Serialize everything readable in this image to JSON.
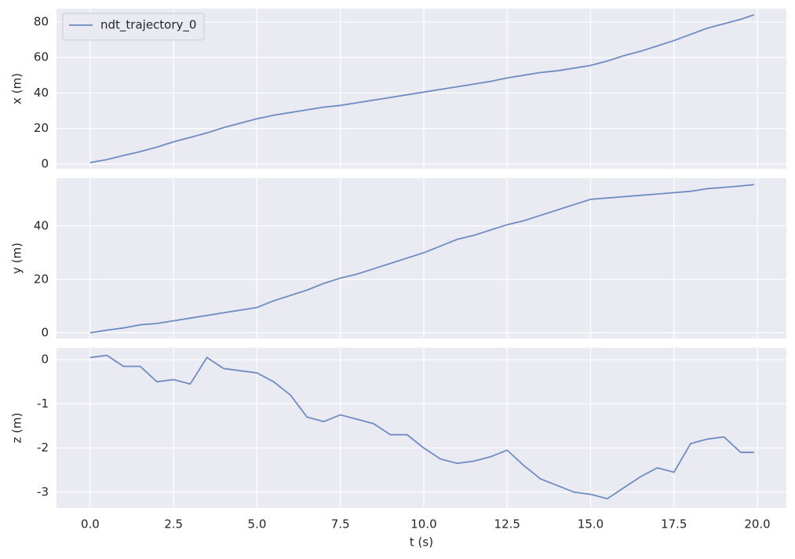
{
  "chart_data": [
    {
      "type": "line",
      "ylabel": "x (m)",
      "legend": "upper left",
      "x": [
        0,
        0.5,
        1,
        1.5,
        2,
        2.5,
        3,
        3.5,
        4,
        4.5,
        5,
        5.5,
        6,
        6.5,
        7,
        7.5,
        8,
        8.5,
        9,
        9.5,
        10,
        10.5,
        11,
        11.5,
        12,
        12.5,
        13,
        13.5,
        14,
        14.5,
        15,
        15.5,
        16,
        16.5,
        17,
        17.5,
        18,
        18.5,
        19,
        19.5,
        19.9
      ],
      "series": [
        {
          "name": "ndt_trajectory_0",
          "color": "#6f8cc2",
          "values": [
            0.8,
            2.5,
            4.8,
            7,
            9.5,
            12.5,
            15,
            17.5,
            20.5,
            23,
            25.5,
            27.5,
            29,
            30.5,
            32,
            33,
            34.5,
            36,
            37.5,
            39,
            40.5,
            42,
            43.5,
            45,
            46.5,
            48.5,
            50,
            51.5,
            52.5,
            54,
            55.5,
            58,
            61,
            63.5,
            66.5,
            69.5,
            73,
            76.5,
            79,
            81.5,
            84
          ]
        }
      ],
      "xlim": [
        -1.01,
        20.87
      ],
      "ylim": [
        -2.7,
        87.5
      ],
      "yticks": [
        0,
        20,
        40,
        60,
        80
      ],
      "grid": true
    },
    {
      "type": "line",
      "ylabel": "y (m)",
      "x": [
        0,
        0.5,
        1,
        1.5,
        2,
        2.5,
        3,
        3.5,
        4,
        4.5,
        5,
        5.5,
        6,
        6.5,
        7,
        7.5,
        8,
        8.5,
        9,
        9.5,
        10,
        10.5,
        11,
        11.5,
        12,
        12.5,
        13,
        13.5,
        14,
        14.5,
        15,
        15.5,
        16,
        16.5,
        17,
        17.5,
        18,
        18.5,
        19,
        19.5,
        19.9
      ],
      "series": [
        {
          "color": "#6f8cc2",
          "values": [
            0,
            1,
            1.8,
            3,
            3.5,
            4.5,
            5.5,
            6.5,
            7.5,
            8.5,
            9.5,
            12,
            14,
            16,
            18.5,
            20.5,
            22,
            24,
            26,
            28,
            30,
            32.5,
            35,
            36.5,
            38.5,
            40.5,
            42,
            44,
            46,
            48,
            50,
            50.5,
            51,
            51.5,
            52,
            52.5,
            53,
            54,
            54.5,
            55,
            55.5
          ]
        }
      ],
      "xlim": [
        -1.01,
        20.87
      ],
      "ylim": [
        -2.1,
        57.9
      ],
      "yticks": [
        0,
        20,
        40
      ],
      "grid": true
    },
    {
      "type": "line",
      "ylabel": "z (m)",
      "xlabel": "t (s)",
      "x": [
        0,
        0.5,
        1,
        1.5,
        2,
        2.5,
        3,
        3.5,
        4,
        4.5,
        5,
        5.5,
        6,
        6.5,
        7,
        7.5,
        8,
        8.5,
        9,
        9.5,
        10,
        10.5,
        11,
        11.5,
        12,
        12.5,
        13,
        13.5,
        14,
        14.5,
        15,
        15.5,
        16,
        16.5,
        17,
        17.5,
        18,
        18.5,
        19,
        19.5,
        19.9
      ],
      "series": [
        {
          "color": "#6f8cc2",
          "values": [
            0.05,
            0.1,
            -0.15,
            -0.15,
            -0.5,
            -0.45,
            -0.55,
            0.05,
            -0.2,
            -0.25,
            -0.3,
            -0.5,
            -0.8,
            -1.3,
            -1.4,
            -1.25,
            -1.35,
            -1.45,
            -1.7,
            -1.7,
            -2.0,
            -2.25,
            -2.35,
            -2.3,
            -2.2,
            -2.05,
            -2.4,
            -2.7,
            -2.85,
            -3.0,
            -3.05,
            -3.15,
            -2.9,
            -2.65,
            -2.45,
            -2.55,
            -1.9,
            -1.8,
            -1.75,
            -2.1,
            -2.1
          ]
        }
      ],
      "xlim": [
        -1.01,
        20.87
      ],
      "ylim": [
        -3.36,
        0.27
      ],
      "yticks": [
        0,
        -1,
        -2,
        -3
      ],
      "xticks": [
        {
          "value": 0,
          "label": "0.0"
        },
        {
          "value": 2.5,
          "label": "2.5"
        },
        {
          "value": 5,
          "label": "5.0"
        },
        {
          "value": 7.5,
          "label": "7.5"
        },
        {
          "value": 10,
          "label": "10.0"
        },
        {
          "value": 12.5,
          "label": "12.5"
        },
        {
          "value": 15,
          "label": "15.0"
        },
        {
          "value": 17.5,
          "label": "17.5"
        },
        {
          "value": 20,
          "label": "20.0"
        }
      ],
      "grid": true
    }
  ]
}
